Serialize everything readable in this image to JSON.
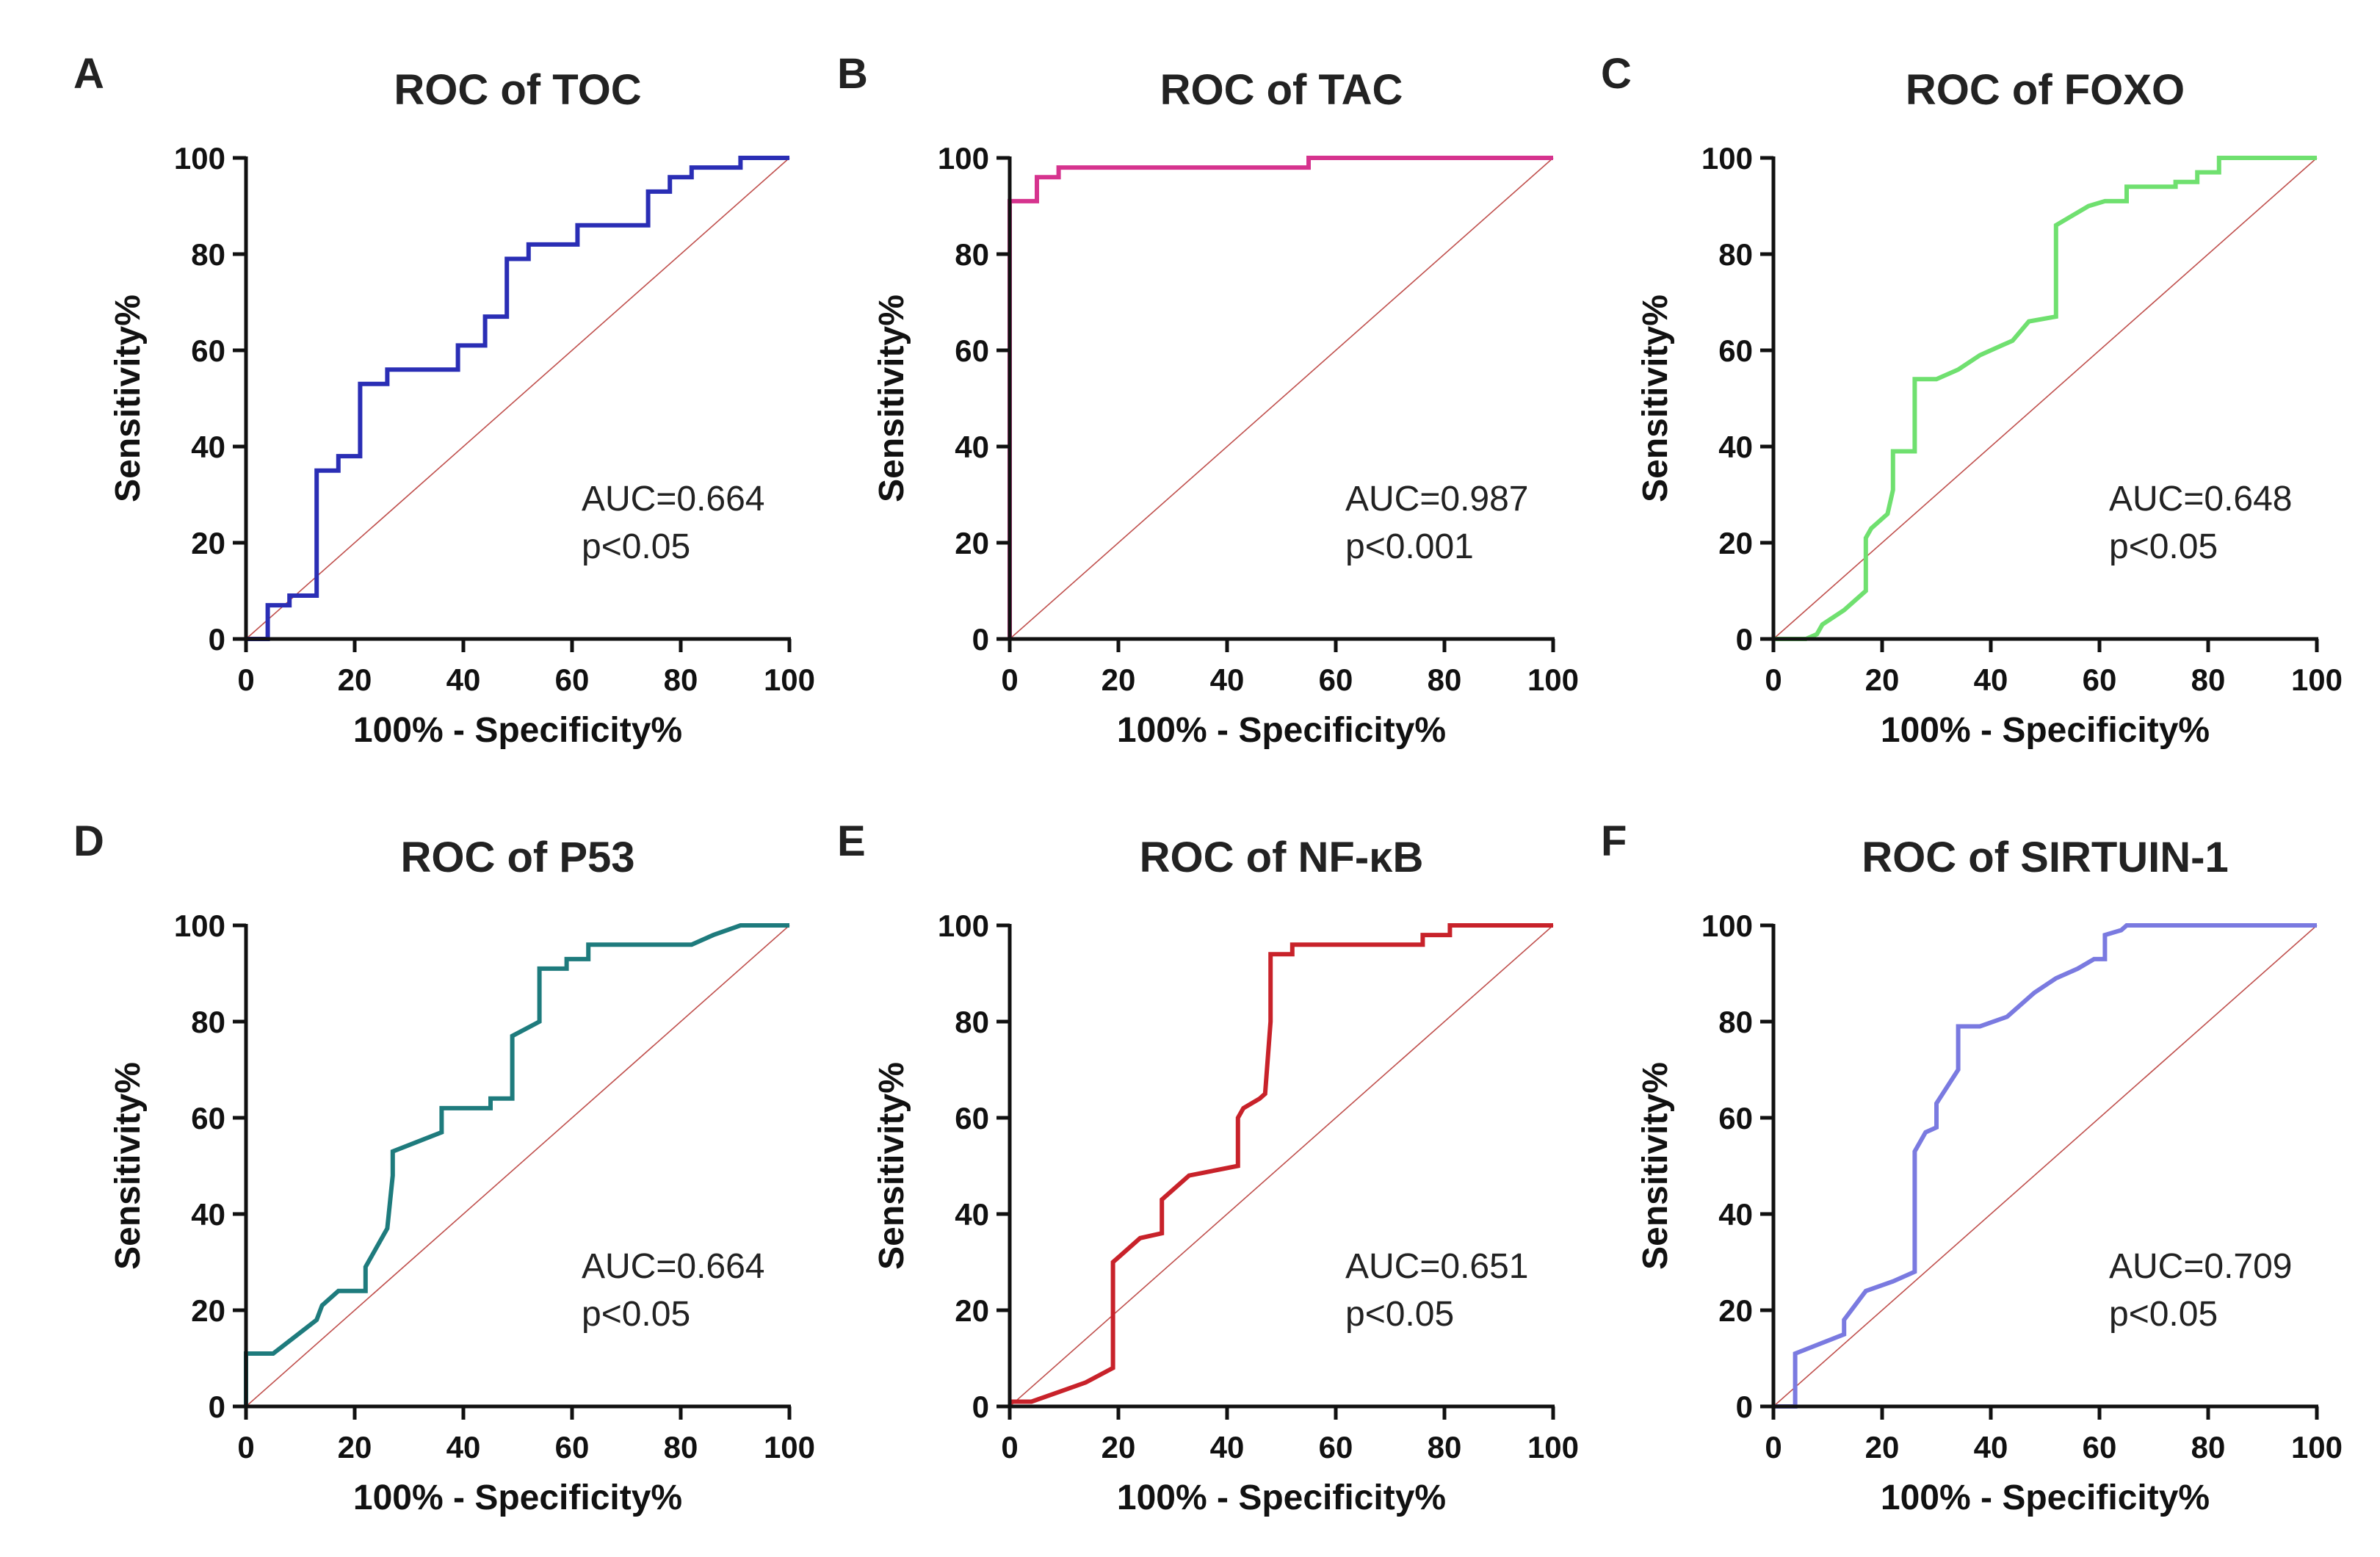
{
  "chart_data": [
    {
      "letter": "A",
      "title": "ROC of TOC",
      "type": "line",
      "xlabel": "100% - Specificity%",
      "ylabel": "Sensitivity%",
      "xlim": [
        0,
        100
      ],
      "ylim": [
        0,
        100
      ],
      "xticks": [
        "0",
        "20",
        "40",
        "60",
        "80",
        "100"
      ],
      "yticks": [
        "0",
        "20",
        "40",
        "60",
        "80",
        "100"
      ],
      "auc": "AUC=0.664",
      "p": "p<0.05",
      "color": "#2a2eb5",
      "series": [
        {
          "name": "ROC of TOC",
          "x": [
            0,
            4,
            4,
            8,
            8,
            13,
            13,
            17,
            17,
            21,
            21,
            26,
            26,
            39,
            39,
            44,
            44,
            48,
            48,
            52,
            52,
            61,
            61,
            74,
            74,
            78,
            78,
            82,
            82,
            91,
            91,
            100
          ],
          "y": [
            0,
            0,
            7,
            7,
            9,
            9,
            35,
            35,
            38,
            38,
            53,
            53,
            56,
            56,
            61,
            61,
            67,
            67,
            79,
            79,
            82,
            82,
            86,
            86,
            93,
            93,
            96,
            96,
            98,
            98,
            100,
            100
          ]
        }
      ]
    },
    {
      "letter": "B",
      "title": "ROC of TAC",
      "type": "line",
      "xlabel": "100% - Specificity%",
      "ylabel": "Sensitivity%",
      "xlim": [
        0,
        100
      ],
      "ylim": [
        0,
        100
      ],
      "xticks": [
        "0",
        "20",
        "40",
        "60",
        "80",
        "100"
      ],
      "yticks": [
        "0",
        "20",
        "40",
        "60",
        "80",
        "100"
      ],
      "auc": "AUC=0.987",
      "p": "p<0.001",
      "color": "#d6338e",
      "series": [
        {
          "name": "ROC of TAC",
          "x": [
            0,
            0,
            5,
            5,
            9,
            9,
            55,
            55,
            100
          ],
          "y": [
            0,
            91,
            91,
            96,
            96,
            98,
            98,
            100,
            100
          ]
        }
      ]
    },
    {
      "letter": "C",
      "title": "ROC of FOXO",
      "type": "line",
      "xlabel": "100% - Specificity%",
      "ylabel": "Sensitivity%",
      "xlim": [
        0,
        100
      ],
      "ylim": [
        0,
        100
      ],
      "xticks": [
        "0",
        "20",
        "40",
        "60",
        "80",
        "100"
      ],
      "yticks": [
        "0",
        "20",
        "40",
        "60",
        "80",
        "100"
      ],
      "auc": "AUC=0.648",
      "p": "p<0.05",
      "color": "#6fe06f",
      "series": [
        {
          "name": "ROC of FOXO",
          "x": [
            0,
            4,
            6,
            8,
            9,
            13,
            17,
            17,
            18,
            21,
            22,
            22,
            26,
            26,
            30,
            34,
            38,
            42,
            44,
            47,
            52,
            52,
            55,
            58,
            61,
            65,
            65,
            70,
            74,
            74,
            78,
            78,
            82,
            82,
            87,
            100
          ],
          "y": [
            0,
            0,
            0,
            1,
            3,
            6,
            10,
            21,
            23,
            26,
            31,
            39,
            39,
            54,
            54,
            56,
            59,
            61,
            62,
            66,
            67,
            86,
            88,
            90,
            91,
            91,
            94,
            94,
            94,
            95,
            95,
            97,
            97,
            100,
            100,
            100
          ]
        }
      ]
    },
    {
      "letter": "D",
      "title": "ROC of P53",
      "type": "line",
      "xlabel": "100% - Specificity%",
      "ylabel": "Sensitivity%",
      "xlim": [
        0,
        100
      ],
      "ylim": [
        0,
        100
      ],
      "xticks": [
        "0",
        "20",
        "40",
        "60",
        "80",
        "100"
      ],
      "yticks": [
        "0",
        "20",
        "40",
        "60",
        "80",
        "100"
      ],
      "auc": "AUC=0.664",
      "p": "p<0.05",
      "color": "#1e7b7d",
      "series": [
        {
          "name": "ROC of P53",
          "x": [
            0,
            0,
            5,
            13,
            14,
            17,
            22,
            22,
            26,
            27,
            27,
            36,
            36,
            45,
            45,
            49,
            49,
            54,
            54,
            59,
            59,
            63,
            63,
            82,
            86,
            86,
            91,
            91,
            100
          ],
          "y": [
            0,
            11,
            11,
            18,
            21,
            24,
            24,
            29,
            37,
            48,
            53,
            57,
            62,
            62,
            64,
            64,
            77,
            80,
            91,
            91,
            93,
            93,
            96,
            96,
            98,
            98,
            100,
            100,
            100
          ]
        }
      ]
    },
    {
      "letter": "E",
      "title": "ROC of NF-κB",
      "type": "line",
      "xlabel": "100% - Specificity%",
      "ylabel": "Sensitivity%",
      "xlim": [
        0,
        100
      ],
      "ylim": [
        0,
        100
      ],
      "xticks": [
        "0",
        "20",
        "40",
        "60",
        "80",
        "100"
      ],
      "yticks": [
        "0",
        "20",
        "40",
        "60",
        "80",
        "100"
      ],
      "auc": "AUC=0.651",
      "p": "p<0.05",
      "color": "#c8222a",
      "series": [
        {
          "name": "ROC of NF-κB",
          "x": [
            0,
            4,
            9,
            14,
            19,
            19,
            24,
            28,
            28,
            33,
            42,
            42,
            43,
            46,
            47,
            48,
            48,
            52,
            52,
            76,
            76,
            81,
            81,
            100
          ],
          "y": [
            1,
            1,
            3,
            5,
            8,
            30,
            35,
            36,
            43,
            48,
            50,
            60,
            62,
            64,
            65,
            80,
            94,
            94,
            96,
            96,
            98,
            98,
            100,
            100
          ]
        }
      ]
    },
    {
      "letter": "F",
      "title": "ROC of SIRTUIN-1",
      "type": "line",
      "xlabel": "100% - Specificity%",
      "ylabel": "Sensitivity%",
      "xlim": [
        0,
        100
      ],
      "ylim": [
        0,
        100
      ],
      "xticks": [
        "0",
        "20",
        "40",
        "60",
        "80",
        "100"
      ],
      "yticks": [
        "0",
        "20",
        "40",
        "60",
        "80",
        "100"
      ],
      "auc": "AUC=0.709",
      "p": "p<0.05",
      "color": "#7a7ae0",
      "series": [
        {
          "name": "ROC of SIRTUIN-1",
          "x": [
            0,
            4,
            4,
            13,
            13,
            17,
            22,
            26,
            26,
            28,
            30,
            30,
            34,
            34,
            38,
            43,
            48,
            52,
            56,
            59,
            61,
            61,
            64,
            65,
            70,
            100
          ],
          "y": [
            0,
            0,
            11,
            15,
            18,
            24,
            26,
            28,
            53,
            57,
            58,
            63,
            70,
            79,
            79,
            81,
            86,
            89,
            91,
            93,
            93,
            98,
            99,
            100,
            100,
            100
          ]
        }
      ]
    }
  ]
}
